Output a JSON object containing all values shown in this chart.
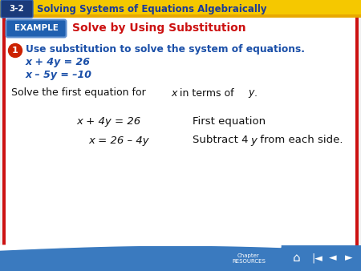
{
  "bg_color": "#f0f0f0",
  "header_bg_top": "#f0c020",
  "header_bg_bottom": "#e8a800",
  "header_text": "Solving Systems of Equations Algebraically",
  "header_label": "3-2",
  "header_label_bg": "#1a3a7a",
  "header_text_color": "#1a3a9a",
  "example_label": "EXAMPLE",
  "example_label_bg": "#2060b0",
  "example_title": "Solve by Using Substitution",
  "example_title_color": "#cc1111",
  "border_color": "#cc1111",
  "footer_bg": "#3a7abf",
  "circle_color": "#cc2200",
  "problem_bold": "Use substitution to solve the system of equations.",
  "problem_color": "#1a4fa8",
  "eq1": "x + 4y = 26",
  "eq2": "x – 5y = –10",
  "eq_color": "#1a4fa8",
  "solve_normal": "Solve the first equation for ",
  "solve_x": "x",
  "solve_mid": " in terms of ",
  "solve_y": "y",
  "solve_period": ".",
  "solve_color": "#111111",
  "row1_math": "x + 4y = 26",
  "row1_note": "First equation",
  "row2_math": "x = 26 – 4y",
  "row2_note_pre": "Subtract 4",
  "row2_note_y": "y",
  "row2_note_post": " from each side.",
  "math_color": "#111111",
  "white": "#ffffff"
}
